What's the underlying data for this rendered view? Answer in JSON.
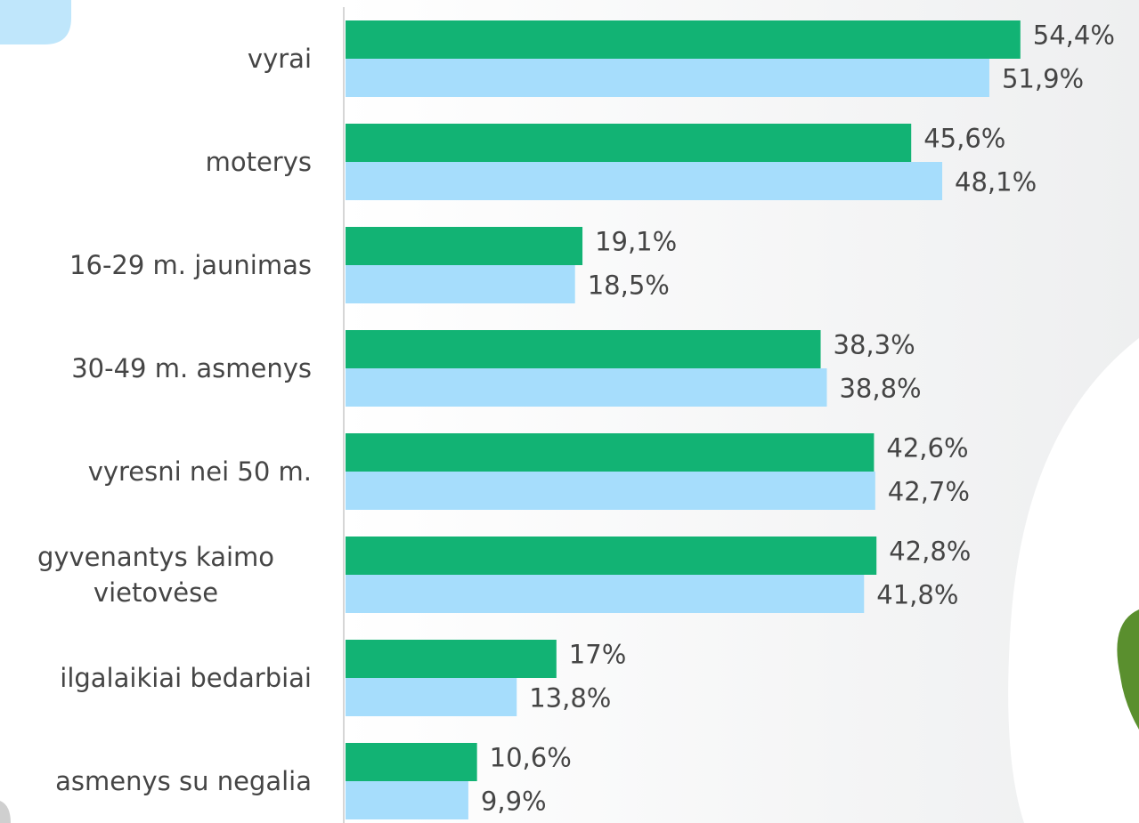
{
  "chart_data": {
    "type": "bar",
    "orientation": "horizontal",
    "categories": [
      "vyrai",
      "moterys",
      "16-29 m. jaunimas",
      "30-49 m. asmenys",
      "vyresni nei 50 m.",
      "gyvenantys kaimo vietovėse",
      "ilgalaikiai bedarbiai",
      "asmenys su negalia"
    ],
    "series": [
      {
        "color": "#12b374",
        "values": [
          54.4,
          45.6,
          19.1,
          38.3,
          42.6,
          42.8,
          17,
          10.6
        ],
        "value_labels": [
          "54,4%",
          "45,6%",
          "19,1%",
          "38,3%",
          "42,6%",
          "42,8%",
          "17%",
          "10,6%"
        ]
      },
      {
        "color": "#a6ddfc",
        "values": [
          51.9,
          48.1,
          18.5,
          38.8,
          42.7,
          41.8,
          13.8,
          9.9
        ],
        "value_labels": [
          "51,9%",
          "48,1%",
          "18,5%",
          "38,8%",
          "42,7%",
          "41,8%",
          "13,8%",
          "9,9%"
        ]
      }
    ]
  }
}
